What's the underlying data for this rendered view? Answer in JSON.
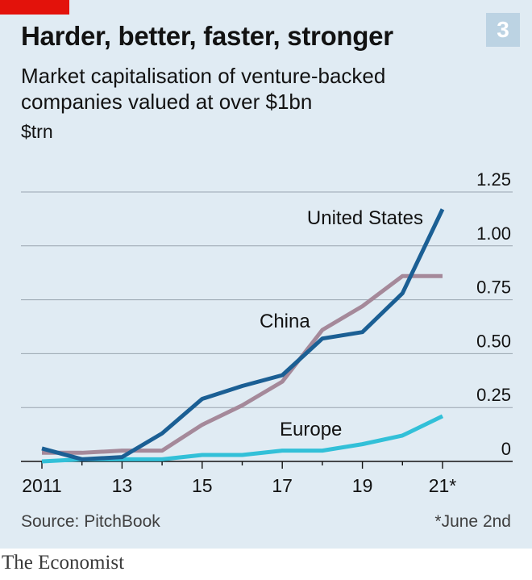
{
  "badge": "3",
  "colors": {
    "background": "#e0ebf3",
    "accent_red": "#e3120b",
    "united_states": "#1b5f94",
    "china": "#a5899a",
    "europe": "#32c0d8",
    "gridline": "#9aa5b0"
  },
  "chart_data": {
    "type": "line",
    "title": "Harder, better, faster, stronger",
    "subtitle": "Market capitalisation of venture-backed companies valued at over $1bn",
    "ylabel": "$trn",
    "x": [
      2011,
      2012,
      2013,
      2014,
      2015,
      2016,
      2017,
      2018,
      2019,
      2020,
      2021
    ],
    "x_ticks": [
      2011,
      2013,
      2015,
      2017,
      2019,
      2021
    ],
    "x_tick_labels": [
      "2011",
      "13",
      "15",
      "17",
      "19",
      "21*"
    ],
    "y_ticks": [
      0,
      0.25,
      0.5,
      0.75,
      1.0,
      1.25
    ],
    "y_tick_labels": [
      "0",
      "0.25",
      "0.50",
      "0.75",
      "1.00",
      "1.25"
    ],
    "ylim": [
      0,
      1.25
    ],
    "grid": true,
    "series": [
      {
        "name": "United States",
        "color": "#1b5f94",
        "values": [
          0.06,
          0.01,
          0.02,
          0.13,
          0.29,
          0.35,
          0.4,
          0.57,
          0.6,
          0.78,
          1.17
        ]
      },
      {
        "name": "China",
        "color": "#a5899a",
        "values": [
          0.04,
          0.04,
          0.05,
          0.05,
          0.17,
          0.26,
          0.37,
          0.61,
          0.72,
          0.86,
          0.86
        ]
      },
      {
        "name": "Europe",
        "color": "#32c0d8",
        "values": [
          0.0,
          0.01,
          0.01,
          0.01,
          0.03,
          0.03,
          0.05,
          0.05,
          0.08,
          0.12,
          0.21
        ]
      }
    ]
  },
  "source": "Source: PitchBook",
  "footnote": "*June 2nd",
  "brand": "The Economist"
}
